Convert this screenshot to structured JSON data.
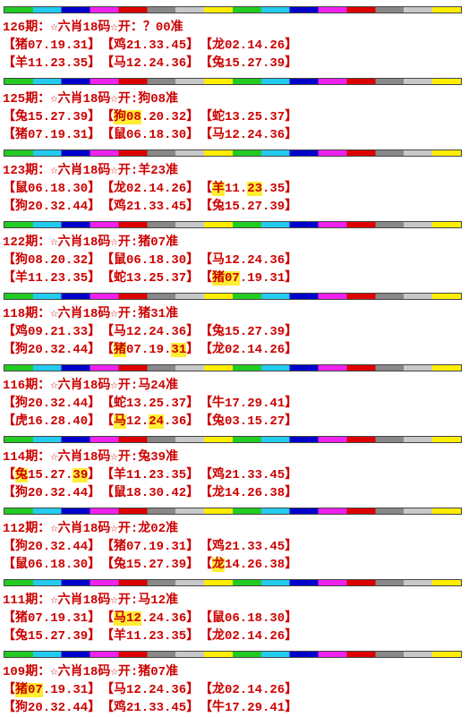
{
  "blocks": [
    {
      "title": "126期：☆六肖18码☆开：？00准",
      "rows": [
        [
          [
            "【猪07.19.31】"
          ],
          [
            "【鸡21.33.45】"
          ],
          [
            "【龙02.14.26】"
          ]
        ],
        [
          [
            "【羊11.23.35】"
          ],
          [
            "【马12.24.36】"
          ],
          [
            "【兔15.27.39】"
          ]
        ]
      ]
    },
    {
      "title": "125期：☆六肖18码☆开:狗08准",
      "rows": [
        [
          [
            "【兔15.27.39】"
          ],
          [
            "【",
            {
              "text": "狗08",
              "highlight": true
            },
            ".20.32】"
          ],
          [
            "【蛇13.25.37】"
          ]
        ],
        [
          [
            "【猪07.19.31】"
          ],
          [
            "【鼠06.18.30】"
          ],
          [
            "【马12.24.36】"
          ]
        ]
      ]
    },
    {
      "title": "123期：☆六肖18码☆开:羊23准",
      "rows": [
        [
          [
            "【鼠06.18.30】"
          ],
          [
            "【龙02.14.26】"
          ],
          [
            "【",
            {
              "text": "羊",
              "highlight": true
            },
            "11.",
            {
              "text": "23",
              "highlight": true
            },
            ".35】"
          ]
        ],
        [
          [
            "【狗20.32.44】"
          ],
          [
            "【鸡21.33.45】"
          ],
          [
            "【兔15.27.39】"
          ]
        ]
      ]
    },
    {
      "title": "122期：☆六肖18码☆开:猪07准",
      "rows": [
        [
          [
            "【狗08.20.32】"
          ],
          [
            "【鼠06.18.30】"
          ],
          [
            "【马12.24.36】"
          ]
        ],
        [
          [
            "【羊11.23.35】"
          ],
          [
            "【蛇13.25.37】"
          ],
          [
            "【",
            {
              "text": "猪07",
              "highlight": true
            },
            ".19.31】"
          ]
        ]
      ]
    },
    {
      "title": "118期：☆六肖18码☆开:猪31准",
      "rows": [
        [
          [
            "【鸡09.21.33】"
          ],
          [
            "【马12.24.36】"
          ],
          [
            "【兔15.27.39】"
          ]
        ],
        [
          [
            "【狗20.32.44】"
          ],
          [
            "【",
            {
              "text": "猪",
              "highlight": true
            },
            "07.19.",
            {
              "text": "31",
              "highlight": true
            },
            "】"
          ],
          [
            "【龙02.14.26】"
          ]
        ]
      ]
    },
    {
      "title": "116期：☆六肖18码☆开:马24准",
      "rows": [
        [
          [
            "【狗20.32.44】"
          ],
          [
            "【蛇13.25.37】"
          ],
          [
            "【牛17.29.41】"
          ]
        ],
        [
          [
            "【虎16.28.40】"
          ],
          [
            "【",
            {
              "text": "马",
              "highlight": true
            },
            "12.",
            {
              "text": "24",
              "highlight": true
            },
            ".36】"
          ],
          [
            "【兔03.15.27】"
          ]
        ]
      ]
    },
    {
      "title": "114期：☆六肖18码☆开:兔39准",
      "rows": [
        [
          [
            "【",
            {
              "text": "兔",
              "highlight": true
            },
            "15.27.",
            {
              "text": "39",
              "highlight": true
            },
            "】"
          ],
          [
            "【羊11.23.35】"
          ],
          [
            "【鸡21.33.45】"
          ]
        ],
        [
          [
            "【狗20.32.44】"
          ],
          [
            "【鼠18.30.42】"
          ],
          [
            "【龙14.26.38】"
          ]
        ]
      ]
    },
    {
      "title": "112期：☆六肖18码☆开:龙02准",
      "rows": [
        [
          [
            "【狗20.32.44】"
          ],
          [
            "【猪07.19.31】"
          ],
          [
            "【鸡21.33.45】"
          ]
        ],
        [
          [
            "【鼠06.18.30】"
          ],
          [
            "【兔15.27.39】"
          ],
          [
            "【",
            {
              "text": "龙",
              "highlight": true
            },
            "14.26.38】"
          ]
        ]
      ]
    },
    {
      "title": "111期：☆六肖18码☆开:马12准",
      "rows": [
        [
          [
            "【猪07.19.31】"
          ],
          [
            "【",
            {
              "text": "马12",
              "highlight": true
            },
            ".24.36】"
          ],
          [
            "【鼠06.18.30】"
          ]
        ],
        [
          [
            "【兔15.27.39】"
          ],
          [
            "【羊11.23.35】"
          ],
          [
            "【龙02.14.26】"
          ]
        ]
      ]
    },
    {
      "title": "109期：☆六肖18码☆开:猪07准",
      "rows": [
        [
          [
            "【",
            {
              "text": "猪07",
              "highlight": true
            },
            ".19.31】"
          ],
          [
            "【马12.24.36】"
          ],
          [
            "【龙02.14.26】"
          ]
        ],
        [
          [
            "【狗20.32.44】"
          ],
          [
            "【鸡21.33.45】"
          ],
          [
            "【牛17.29.41】"
          ]
        ]
      ]
    }
  ]
}
